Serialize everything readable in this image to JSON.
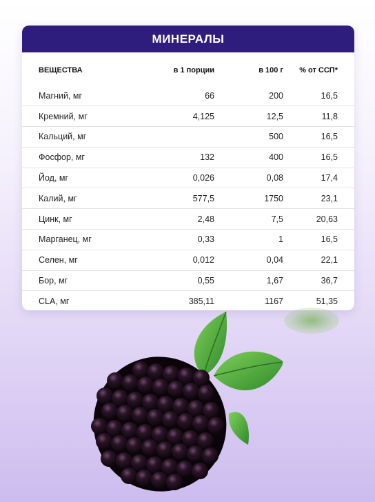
{
  "card": {
    "title": "МИНЕРАЛЫ",
    "columns": [
      "ВЕЩЕСТВА",
      "в 1 порции",
      "в 100 г",
      "% от ССП*"
    ],
    "rows": [
      [
        "Магний, мг",
        "66",
        "200",
        "16,5"
      ],
      [
        "Кремний, мг",
        "4,125",
        "12,5",
        "11,8"
      ],
      [
        "Кальций, мг",
        "",
        "500",
        "16,5"
      ],
      [
        "Фосфор, мг",
        "132",
        "400",
        "16,5"
      ],
      [
        "Йод, мг",
        "0,026",
        "0,08",
        "17,4"
      ],
      [
        "Калий, мг",
        "577,5",
        "1750",
        "23,1"
      ],
      [
        "Цинк, мг",
        "2,48",
        "7,5",
        "20,63"
      ],
      [
        "Марганец, мг",
        "0,33",
        "1",
        "16,5"
      ],
      [
        "Селен, мг",
        "0,012",
        "0,04",
        "22,1"
      ],
      [
        "Бор, мг",
        "0,55",
        "1,67",
        "36,7"
      ],
      [
        "CLA, мг",
        "385,11",
        "1167",
        "51,35"
      ]
    ]
  },
  "colors": {
    "header_bg": "#2f1d7d",
    "background_bottom": "#cdbcef"
  },
  "icons": [
    "blackberry-illustration",
    "leaf-decoration"
  ]
}
